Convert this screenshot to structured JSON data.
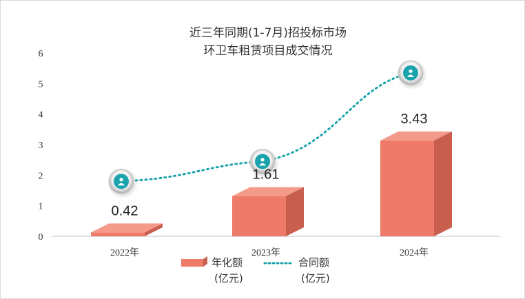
{
  "chart_data": {
    "type": "bar",
    "title": [
      "近三年同期(1-7月)招投标市场",
      "环卫车租赁项目成交情况"
    ],
    "categories": [
      "2022年",
      "2023年",
      "2024年"
    ],
    "series": [
      {
        "name": [
          "年化额",
          "(亿元)"
        ],
        "type": "bar",
        "values": [
          0.42,
          1.61,
          3.43
        ],
        "color": "#ee7b69"
      },
      {
        "name": [
          "合同额",
          "(亿元)"
        ],
        "type": "line",
        "style": "dotted",
        "values": [
          1.8,
          2.45,
          5.35
        ],
        "color": "#1ba3ad"
      }
    ],
    "data_labels": [
      "0.42",
      "1.61",
      "3.43"
    ],
    "ylim": [
      0,
      6
    ],
    "yticks": [
      "0",
      "1",
      "2",
      "3",
      "4",
      "5",
      "6"
    ],
    "grid": false,
    "legend_position": "bottom",
    "marker_icon": "person-badge-icon"
  }
}
